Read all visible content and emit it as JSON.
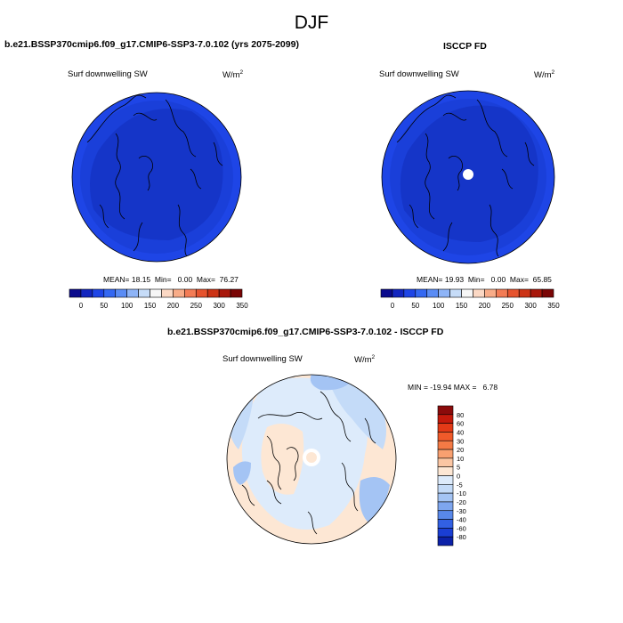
{
  "figure": {
    "title": "DJF"
  },
  "panels": [
    {
      "title": "b.e21.BSSP370cmip6.f09_g17.CMIP6-SSP3-7.0.102 (yrs 2075-2099)",
      "variable": "Surf downwelling SW",
      "units": "W/m",
      "units_sup": "2",
      "stats": "MEAN= 18.15  Min=   0.00  Max=  76.27"
    },
    {
      "title": "ISCCP FD",
      "variable": "Surf downwelling SW",
      "units": "W/m",
      "units_sup": "2",
      "stats": "MEAN= 19.93  Min=   0.00  Max=  65.85"
    },
    {
      "title": "b.e21.BSSP370cmip6.f09_g17.CMIP6-SSP3-7.0.102 - ISCCP FD",
      "variable": "Surf downwelling SW",
      "units": "W/m",
      "units_sup": "2",
      "stats": "MIN = -19.94 MAX =   6.78"
    }
  ],
  "chart_data": [
    {
      "type": "heatmap",
      "projection": "north polar stereographic",
      "title": "b.e21.BSSP370cmip6.f09_g17.CMIP6-SSP3-7.0.102 (yrs 2075-2099)",
      "variable": "Surf downwelling SW",
      "units": "W/m2",
      "mean": 18.15,
      "min": 0.0,
      "max": 76.27,
      "colorbar": {
        "orientation": "horizontal",
        "levels": [
          0,
          25,
          50,
          75,
          100,
          125,
          150,
          175,
          200,
          225,
          250,
          275,
          300,
          325,
          350
        ],
        "tick_labels": [
          "0",
          "50",
          "100",
          "150",
          "200",
          "250",
          "300",
          "350"
        ],
        "colors": [
          "#0a0a8c",
          "#1225bf",
          "#1e45e6",
          "#3468f2",
          "#5a8cf5",
          "#8eb4f7",
          "#c6dcf8",
          "#f6f6f6",
          "#fbd8c4",
          "#f8ac88",
          "#f37c55",
          "#e6532e",
          "#cc3315",
          "#a8170a",
          "#7a0505"
        ]
      }
    },
    {
      "type": "heatmap",
      "projection": "north polar stereographic",
      "title": "ISCCP FD",
      "variable": "Surf downwelling SW",
      "units": "W/m2",
      "mean": 19.93,
      "min": 0.0,
      "max": 65.85,
      "colorbar": {
        "orientation": "horizontal",
        "levels": [
          0,
          25,
          50,
          75,
          100,
          125,
          150,
          175,
          200,
          225,
          250,
          275,
          300,
          325,
          350
        ],
        "tick_labels": [
          "0",
          "50",
          "100",
          "150",
          "200",
          "250",
          "300",
          "350"
        ],
        "colors": [
          "#0a0a8c",
          "#1225bf",
          "#1e45e6",
          "#3468f2",
          "#5a8cf5",
          "#8eb4f7",
          "#c6dcf8",
          "#f6f6f6",
          "#fbd8c4",
          "#f8ac88",
          "#f37c55",
          "#e6532e",
          "#cc3315",
          "#a8170a",
          "#7a0505"
        ]
      }
    },
    {
      "type": "heatmap",
      "projection": "north polar stereographic",
      "title": "b.e21.BSSP370cmip6.f09_g17.CMIP6-SSP3-7.0.102 - ISCCP FD",
      "variable": "Surf downwelling SW",
      "units": "W/m2",
      "min": -19.94,
      "max": 6.78,
      "colorbar": {
        "orientation": "vertical",
        "tick_labels": [
          "80",
          "60",
          "40",
          "30",
          "20",
          "10",
          "5",
          "0",
          "-5",
          "-10",
          "-20",
          "-30",
          "-40",
          "-60",
          "-80"
        ],
        "colors": [
          "#8b0b0b",
          "#c41a0c",
          "#e33a17",
          "#f05a2a",
          "#f47a45",
          "#f8a070",
          "#fbc6a3",
          "#fde7d4",
          "#ddebfb",
          "#c4dbf8",
          "#a4c4f4",
          "#7ea6ef",
          "#5888ea",
          "#3260e3",
          "#1a3ed4",
          "#0c21a8"
        ]
      }
    }
  ]
}
